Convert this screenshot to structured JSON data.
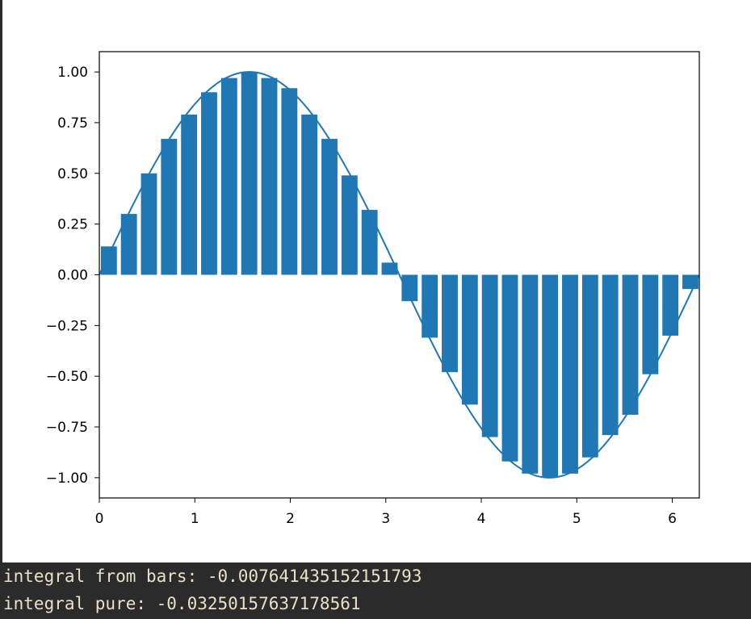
{
  "chart_data": {
    "type": "bar",
    "title": "",
    "xlabel": "",
    "ylabel": "",
    "xlim": [
      0,
      6.283185307179586
    ],
    "ylim": [
      -1.1,
      1.1
    ],
    "x_ticks": [
      0,
      1,
      2,
      3,
      4,
      5,
      6
    ],
    "y_ticks": [
      -1.0,
      -0.75,
      -0.5,
      -0.25,
      0.0,
      0.25,
      0.5,
      0.75,
      1.0
    ],
    "y_tick_labels": [
      "−1.00",
      "−0.75",
      "−0.50",
      "−0.25",
      "0.00",
      "0.25",
      "0.50",
      "0.75",
      "1.00"
    ],
    "x_tick_labels": [
      "0",
      "1",
      "2",
      "3",
      "4",
      "5",
      "6"
    ],
    "grid": false,
    "bar_color": "#1f77b4",
    "bars": {
      "x": [
        0.1,
        0.31,
        0.52,
        0.73,
        0.94,
        1.15,
        1.36,
        1.57,
        1.78,
        1.99,
        2.2,
        2.41,
        2.62,
        2.83,
        3.04,
        3.25,
        3.46,
        3.67,
        3.88,
        4.09,
        4.3,
        4.51,
        4.72,
        4.93,
        5.14,
        5.35,
        5.56,
        5.77,
        5.98,
        6.19
      ],
      "values": [
        0.14,
        0.3,
        0.5,
        0.67,
        0.79,
        0.9,
        0.97,
        1.0,
        0.97,
        0.92,
        0.79,
        0.67,
        0.49,
        0.32,
        0.06,
        -0.13,
        -0.31,
        -0.48,
        -0.64,
        -0.8,
        -0.92,
        -0.98,
        -1.0,
        -0.98,
        -0.9,
        -0.79,
        -0.69,
        -0.49,
        -0.3,
        -0.07
      ]
    },
    "series": [
      {
        "type": "line",
        "function": "sin(x)",
        "x_range": [
          0,
          6.283185307179586
        ],
        "color": "#1f77b4"
      }
    ]
  },
  "console": {
    "line1": "integral from bars: -0.007641435152151793",
    "line2": "integral pure: -0.03250157637178561"
  }
}
